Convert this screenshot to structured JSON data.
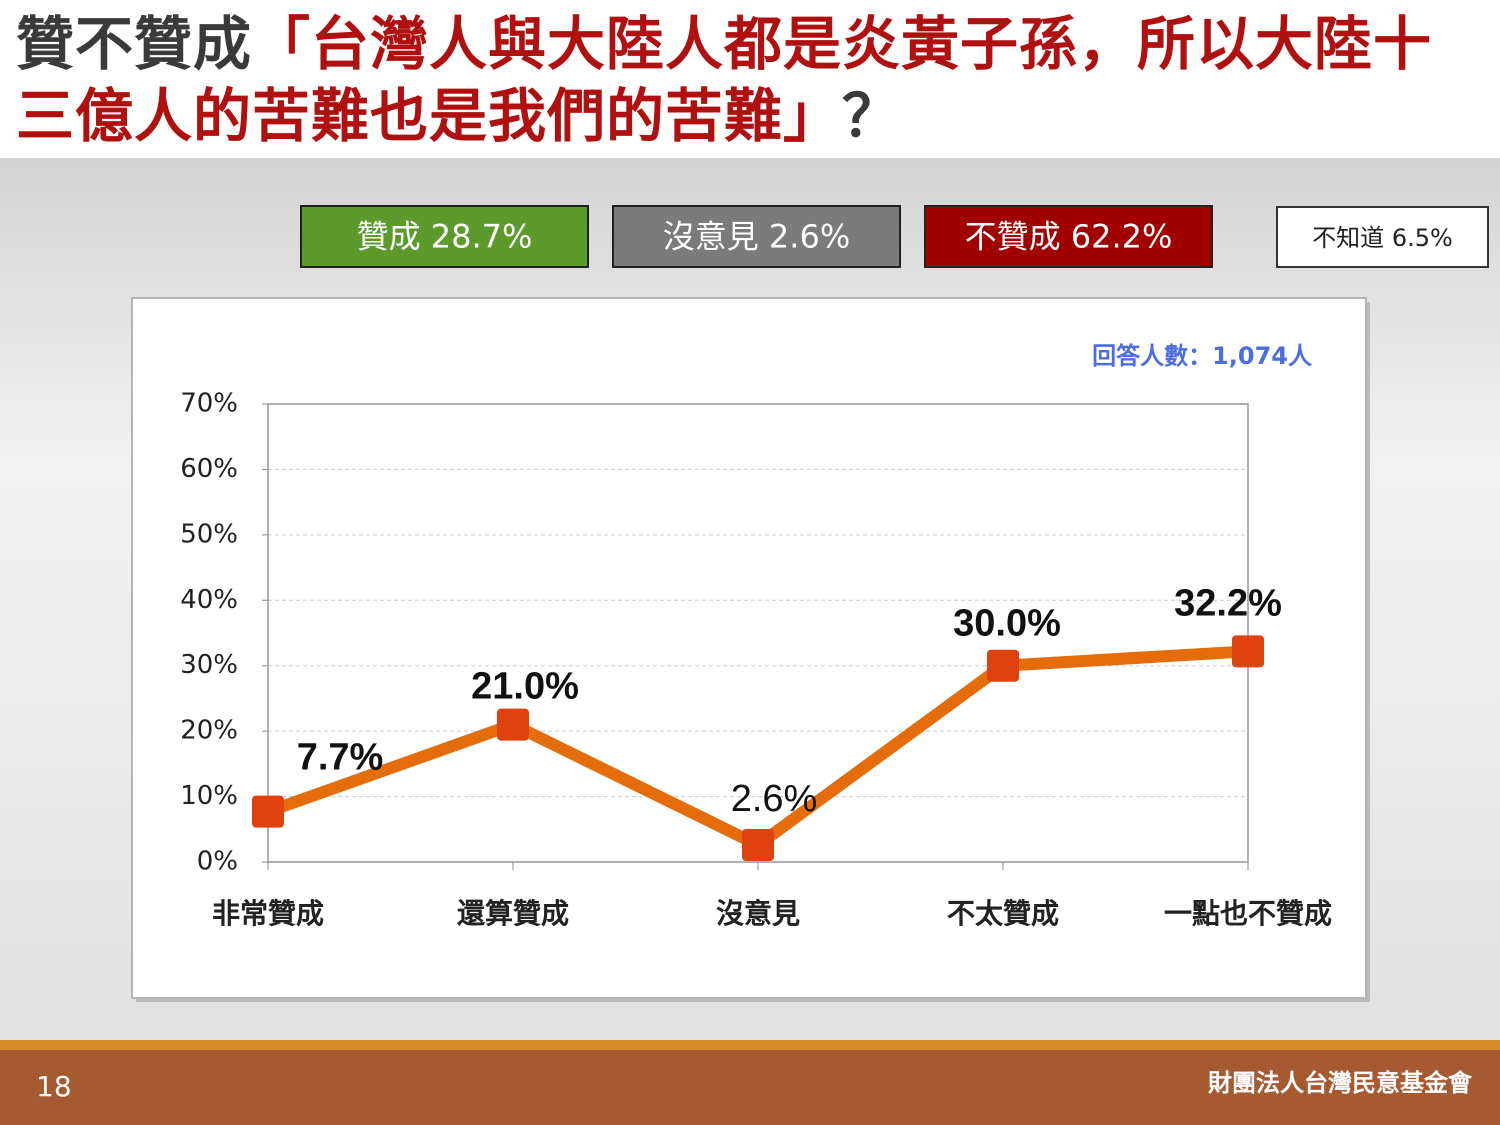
{
  "title": {
    "lead": "贊不贊成",
    "quote": "「台灣人與大陸人都是炎黃子孫，所以大陸十三億人的苦難也是我們的苦難」",
    "end": "？"
  },
  "summary": [
    {
      "text": "贊成 28.7%",
      "color": "#5b9a2b"
    },
    {
      "text": "沒意見 2.6%",
      "color": "#7b7b7b"
    },
    {
      "text": "不贊成 62.2%",
      "color": "#a00000"
    },
    {
      "text": "不知道 6.5%",
      "color": "#ffffff"
    }
  ],
  "note": "回答人數：1,074人",
  "footer": {
    "page": "18",
    "org": "財團法人台灣民意基金會"
  },
  "chart_data": {
    "type": "line",
    "categories": [
      "非常贊成",
      "還算贊成",
      "沒意見",
      "不太贊成",
      "一點也不贊成"
    ],
    "series": [
      {
        "color": "#e46c0a",
        "marker_color": "#e0420f",
        "values": [
          7.7,
          21.0,
          2.6,
          30.0,
          32.2
        ],
        "value_labels": [
          "7.7%",
          "21.0%",
          "2.6%",
          "30.0%",
          "32.2%"
        ]
      }
    ],
    "ylim": [
      0,
      70
    ],
    "yticks": [
      {
        "value": 0,
        "label": "0%"
      },
      {
        "value": 10,
        "label": "10%"
      },
      {
        "value": 20,
        "label": "20%"
      },
      {
        "value": 30,
        "label": "30%"
      },
      {
        "value": 40,
        "label": "40%"
      },
      {
        "value": 50,
        "label": "50%"
      },
      {
        "value": 60,
        "label": "60%"
      },
      {
        "value": 70,
        "label": "70%"
      }
    ],
    "grid": true
  }
}
